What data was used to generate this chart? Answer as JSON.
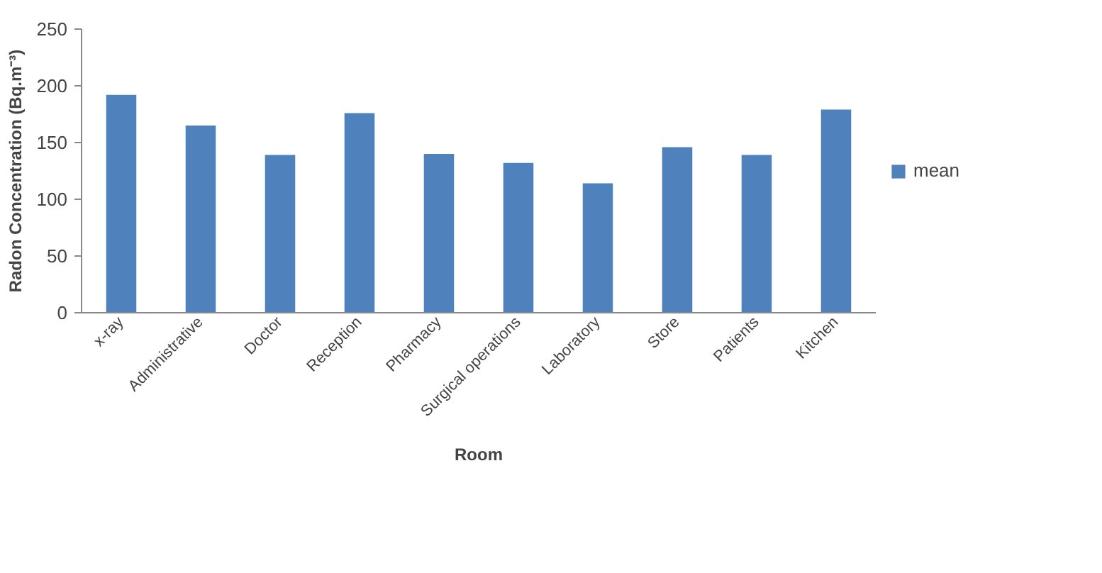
{
  "chart_data": {
    "type": "bar",
    "xlabel": "Room",
    "ylabel": "Radon Concentration (Bq.m⁻³)",
    "categories": [
      "x-ray",
      "Administrative",
      "Doctor",
      "Reception",
      "Pharmacy",
      "Surgical operations",
      "Laboratory",
      "Store",
      "Patients",
      "Kitchen"
    ],
    "series": [
      {
        "name": "mean",
        "color": "#4f81bd",
        "values": [
          192,
          165,
          139,
          176,
          140,
          132,
          114,
          146,
          139,
          179
        ]
      }
    ],
    "ylim": [
      0,
      250
    ],
    "yticks": [
      0,
      50,
      100,
      150,
      200,
      250
    ],
    "grid": false,
    "legend": "right"
  }
}
